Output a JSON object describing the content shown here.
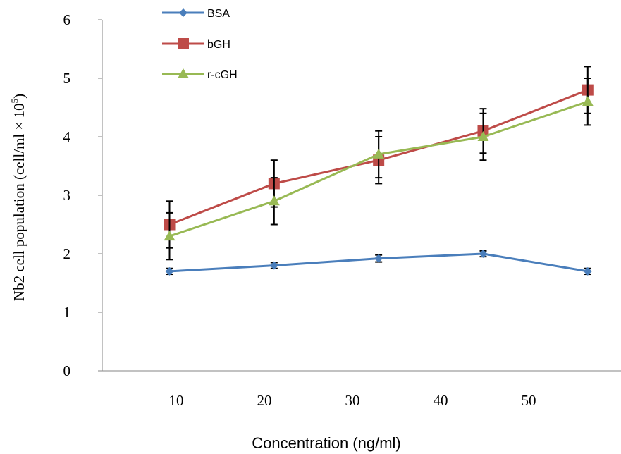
{
  "chart_data": {
    "type": "line",
    "xlabel": "Concentration (ng/ml)",
    "ylabel": "Nb2 cell population (cell/ml × 10",
    "ylabel_sup": "5",
    "ylabel_close": ")",
    "categories": [
      "10",
      "20",
      "30",
      "40",
      "50"
    ],
    "ylim": [
      0,
      6
    ],
    "yticks": [
      "0",
      "1",
      "2",
      "3",
      "4",
      "5",
      "6"
    ],
    "grid": false,
    "legend_position": "top-left",
    "series": [
      {
        "name": "BSA",
        "color": "#4a7ebb",
        "marker": "diamond",
        "x": [
          8.5,
          21.7,
          34.9,
          48.1,
          61.3
        ],
        "values": [
          1.7,
          1.8,
          1.92,
          2.0,
          1.7
        ],
        "errors": [
          0.05,
          0.05,
          0.06,
          0.05,
          0.05
        ]
      },
      {
        "name": "bGH",
        "color": "#be4b48",
        "marker": "square",
        "x": [
          8.5,
          21.7,
          34.9,
          48.1,
          61.3
        ],
        "values": [
          2.5,
          3.2,
          3.6,
          4.1,
          4.8
        ],
        "errors": [
          0.4,
          0.4,
          0.4,
          0.38,
          0.4
        ]
      },
      {
        "name": "r-cGH",
        "color": "#98b954",
        "marker": "triangle",
        "x": [
          8.5,
          21.7,
          34.9,
          48.1,
          61.3
        ],
        "values": [
          2.3,
          2.9,
          3.7,
          4.0,
          4.6
        ],
        "errors": [
          0.4,
          0.4,
          0.4,
          0.4,
          0.4
        ]
      }
    ]
  }
}
